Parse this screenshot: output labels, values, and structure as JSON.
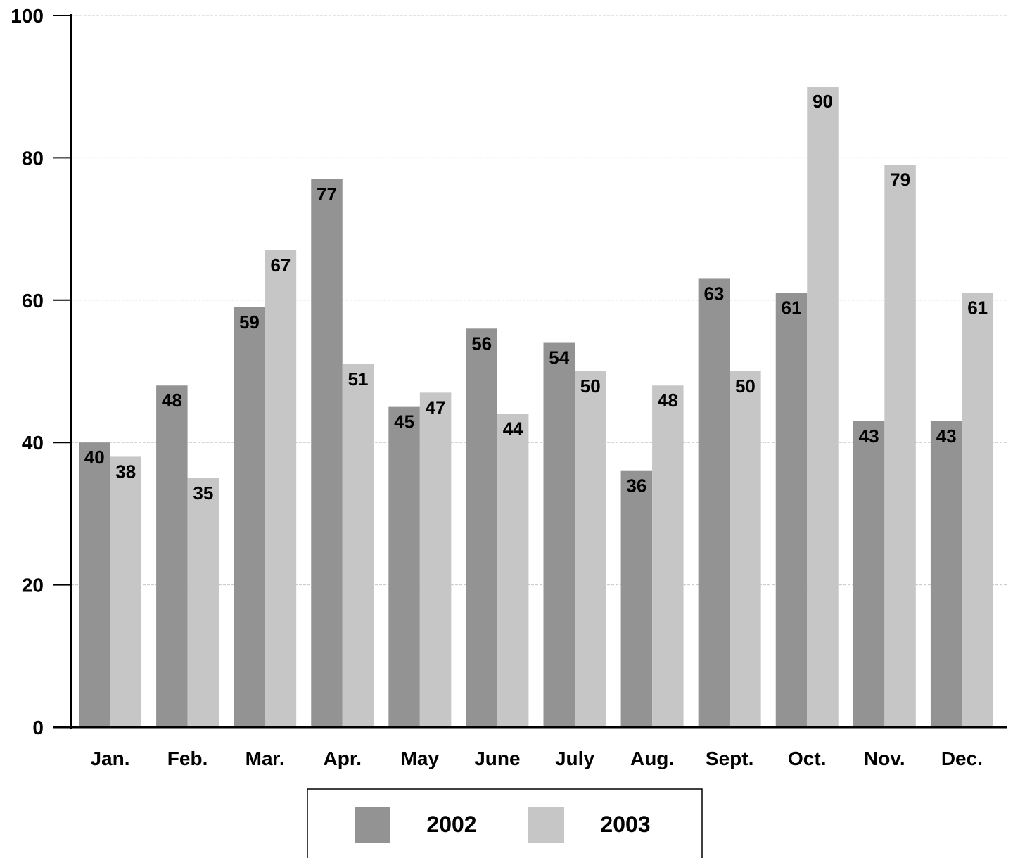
{
  "chart_data": {
    "type": "bar",
    "categories": [
      "Jan.",
      "Feb.",
      "Mar.",
      "Apr.",
      "May",
      "June",
      "July",
      "Aug.",
      "Sept.",
      "Oct.",
      "Nov.",
      "Dec."
    ],
    "series": [
      {
        "name": "2002",
        "color": "#939393",
        "values": [
          40,
          48,
          59,
          77,
          45,
          56,
          54,
          36,
          63,
          61,
          43,
          43
        ]
      },
      {
        "name": "2003",
        "color": "#c6c6c6",
        "values": [
          38,
          35,
          67,
          51,
          47,
          44,
          50,
          48,
          50,
          90,
          79,
          61
        ]
      }
    ],
    "ylim": [
      0,
      100
    ],
    "yticks": [
      0,
      20,
      40,
      60,
      80,
      100
    ],
    "grid": true,
    "legend": "bottom-center",
    "title": "",
    "xlabel": "",
    "ylabel": ""
  }
}
